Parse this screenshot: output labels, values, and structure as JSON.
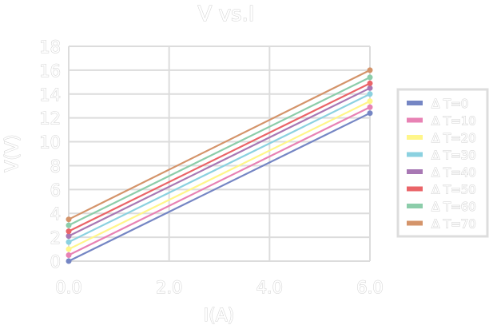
{
  "chart_data": {
    "type": "line",
    "title": "V vs.I",
    "xlabel": "I(A)",
    "ylabel": "V(V)",
    "xlim": [
      0,
      6
    ],
    "ylim": [
      0,
      18
    ],
    "xticks": [
      "0.0",
      "2.0",
      "4.0",
      "6.0"
    ],
    "xtick_values": [
      0,
      2,
      4,
      6
    ],
    "yticks": [
      0,
      2,
      4,
      6,
      8,
      10,
      12,
      14,
      16,
      18
    ],
    "grid": true,
    "legend_placement": "right",
    "x": [
      0,
      6
    ],
    "series": [
      {
        "name": "Δ T=0",
        "values": [
          0.0,
          12.4
        ],
        "color": "#7586c4"
      },
      {
        "name": "Δ T=10",
        "values": [
          0.5,
          12.9
        ],
        "color": "#e882b4"
      },
      {
        "name": "Δ T=20",
        "values": [
          1.0,
          13.4
        ],
        "color": "#fff68a"
      },
      {
        "name": "Δ T=30",
        "values": [
          1.6,
          14.0
        ],
        "color": "#8bd1e0"
      },
      {
        "name": "Δ T=40",
        "values": [
          2.1,
          14.5
        ],
        "color": "#a878b4"
      },
      {
        "name": "Δ T=50",
        "values": [
          2.5,
          14.9
        ],
        "color": "#ea6468"
      },
      {
        "name": "Δ T=60",
        "values": [
          3.0,
          15.4
        ],
        "color": "#8ccdaa"
      },
      {
        "name": "Δ T=70",
        "values": [
          3.5,
          16.0
        ],
        "color": "#d4946a"
      }
    ]
  }
}
